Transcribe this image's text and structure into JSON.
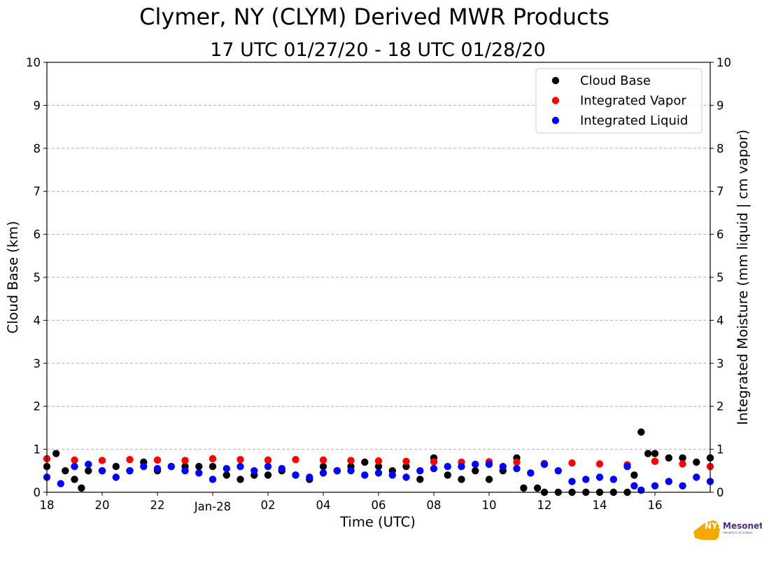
{
  "chart_data": {
    "type": "scatter",
    "title": "Clymer, NY (CLYM) Derived MWR Products",
    "subtitle": "17 UTC 01/27/20 - 18 UTC 01/28/20",
    "xlabel": "Time (UTC)",
    "ylabel": "Cloud Base (km)",
    "ylabel_right": "Integrated Moisture (mm liquid | cm vapor)",
    "xlim": [
      "2020-01-27 18:00",
      "2020-01-28 18:00"
    ],
    "ylim": [
      0,
      10
    ],
    "ylim_right": [
      0,
      10
    ],
    "x_ticks": [
      {
        "t": "2020-01-27 18:00",
        "label": "18"
      },
      {
        "t": "2020-01-27 20:00",
        "label": "20"
      },
      {
        "t": "2020-01-27 22:00",
        "label": "22"
      },
      {
        "t": "2020-01-28 00:00",
        "label": "Jan-28"
      },
      {
        "t": "2020-01-28 02:00",
        "label": "02"
      },
      {
        "t": "2020-01-28 04:00",
        "label": "04"
      },
      {
        "t": "2020-01-28 06:00",
        "label": "06"
      },
      {
        "t": "2020-01-28 08:00",
        "label": "08"
      },
      {
        "t": "2020-01-28 10:00",
        "label": "10"
      },
      {
        "t": "2020-01-28 12:00",
        "label": "12"
      },
      {
        "t": "2020-01-28 14:00",
        "label": "14"
      },
      {
        "t": "2020-01-28 16:00",
        "label": "16"
      }
    ],
    "y_ticks": [
      "0",
      "1",
      "2",
      "3",
      "4",
      "5",
      "6",
      "7",
      "8",
      "9",
      "10"
    ],
    "grid": "horizontal dashed",
    "legend_position": "top-right",
    "series": [
      {
        "name": "Cloud Base",
        "color": "#000000",
        "x": [
          "2020-01-27 18:00",
          "2020-01-27 18:20",
          "2020-01-27 18:40",
          "2020-01-27 19:00",
          "2020-01-27 19:15",
          "2020-01-27 19:30",
          "2020-01-27 20:00",
          "2020-01-27 20:30",
          "2020-01-27 21:00",
          "2020-01-27 21:30",
          "2020-01-27 22:00",
          "2020-01-27 22:30",
          "2020-01-27 23:00",
          "2020-01-27 23:30",
          "2020-01-28 00:00",
          "2020-01-28 00:30",
          "2020-01-28 01:00",
          "2020-01-28 01:30",
          "2020-01-28 02:00",
          "2020-01-28 02:30",
          "2020-01-28 03:00",
          "2020-01-28 03:30",
          "2020-01-28 04:00",
          "2020-01-28 04:30",
          "2020-01-28 05:00",
          "2020-01-28 05:30",
          "2020-01-28 06:00",
          "2020-01-28 06:30",
          "2020-01-28 07:00",
          "2020-01-28 07:30",
          "2020-01-28 08:00",
          "2020-01-28 08:30",
          "2020-01-28 09:00",
          "2020-01-28 09:30",
          "2020-01-28 10:00",
          "2020-01-28 10:30",
          "2020-01-28 11:00",
          "2020-01-28 11:15",
          "2020-01-28 11:45",
          "2020-01-28 12:00",
          "2020-01-28 12:30",
          "2020-01-28 13:00",
          "2020-01-28 13:30",
          "2020-01-28 14:00",
          "2020-01-28 14:30",
          "2020-01-28 15:00",
          "2020-01-28 15:15",
          "2020-01-28 15:30",
          "2020-01-28 15:45",
          "2020-01-28 16:00",
          "2020-01-28 16:30",
          "2020-01-28 17:00",
          "2020-01-28 17:30",
          "2020-01-28 18:00"
        ],
        "y": [
          0.6,
          0.9,
          0.5,
          0.3,
          0.1,
          0.5,
          0.5,
          0.6,
          0.5,
          0.7,
          0.5,
          0.6,
          0.6,
          0.6,
          0.6,
          0.4,
          0.3,
          0.4,
          0.4,
          0.5,
          0.4,
          0.3,
          0.6,
          0.5,
          0.6,
          0.7,
          0.6,
          0.5,
          0.6,
          0.3,
          0.8,
          0.4,
          0.3,
          0.5,
          0.3,
          0.5,
          0.8,
          0.1,
          0.1,
          0.0,
          0.0,
          0.0,
          0.0,
          0.0,
          0.0,
          0.0,
          0.4,
          1.4,
          0.9,
          0.9,
          0.8,
          0.8,
          0.7,
          0.8
        ]
      },
      {
        "name": "Integrated Vapor",
        "color": "#ff0000",
        "x": [
          "2020-01-27 18:00",
          "2020-01-27 19:00",
          "2020-01-27 20:00",
          "2020-01-27 21:00",
          "2020-01-27 22:00",
          "2020-01-27 23:00",
          "2020-01-28 00:00",
          "2020-01-28 01:00",
          "2020-01-28 02:00",
          "2020-01-28 03:00",
          "2020-01-28 04:00",
          "2020-01-28 05:00",
          "2020-01-28 06:00",
          "2020-01-28 07:00",
          "2020-01-28 08:00",
          "2020-01-28 09:00",
          "2020-01-28 10:00",
          "2020-01-28 11:00",
          "2020-01-28 12:00",
          "2020-01-28 13:00",
          "2020-01-28 14:00",
          "2020-01-28 15:00",
          "2020-01-28 16:00",
          "2020-01-28 17:00",
          "2020-01-28 18:00"
        ],
        "y": [
          0.78,
          0.75,
          0.74,
          0.76,
          0.75,
          0.74,
          0.78,
          0.76,
          0.75,
          0.76,
          0.75,
          0.74,
          0.73,
          0.72,
          0.71,
          0.7,
          0.71,
          0.7,
          0.67,
          0.68,
          0.66,
          0.64,
          0.72,
          0.66,
          0.6
        ]
      },
      {
        "name": "Integrated Liquid",
        "color": "#0000ff",
        "x": [
          "2020-01-27 18:00",
          "2020-01-27 18:30",
          "2020-01-27 19:00",
          "2020-01-27 19:30",
          "2020-01-27 20:00",
          "2020-01-27 20:30",
          "2020-01-27 21:00",
          "2020-01-27 21:30",
          "2020-01-27 22:00",
          "2020-01-27 22:30",
          "2020-01-27 23:00",
          "2020-01-27 23:30",
          "2020-01-28 00:00",
          "2020-01-28 00:30",
          "2020-01-28 01:00",
          "2020-01-28 01:30",
          "2020-01-28 02:00",
          "2020-01-28 02:30",
          "2020-01-28 03:00",
          "2020-01-28 03:30",
          "2020-01-28 04:00",
          "2020-01-28 04:30",
          "2020-01-28 05:00",
          "2020-01-28 05:30",
          "2020-01-28 06:00",
          "2020-01-28 06:30",
          "2020-01-28 07:00",
          "2020-01-28 07:30",
          "2020-01-28 08:00",
          "2020-01-28 08:30",
          "2020-01-28 09:00",
          "2020-01-28 09:30",
          "2020-01-28 10:00",
          "2020-01-28 10:30",
          "2020-01-28 11:00",
          "2020-01-28 11:30",
          "2020-01-28 12:00",
          "2020-01-28 12:30",
          "2020-01-28 13:00",
          "2020-01-28 13:30",
          "2020-01-28 14:00",
          "2020-01-28 14:30",
          "2020-01-28 15:00",
          "2020-01-28 15:15",
          "2020-01-28 15:30",
          "2020-01-28 16:00",
          "2020-01-28 16:30",
          "2020-01-28 17:00",
          "2020-01-28 17:30",
          "2020-01-28 18:00"
        ],
        "y": [
          0.35,
          0.2,
          0.6,
          0.65,
          0.5,
          0.35,
          0.5,
          0.6,
          0.55,
          0.6,
          0.5,
          0.45,
          0.3,
          0.55,
          0.6,
          0.5,
          0.6,
          0.55,
          0.4,
          0.35,
          0.45,
          0.5,
          0.5,
          0.4,
          0.45,
          0.4,
          0.35,
          0.5,
          0.55,
          0.6,
          0.6,
          0.65,
          0.65,
          0.6,
          0.55,
          0.45,
          0.65,
          0.5,
          0.25,
          0.3,
          0.35,
          0.3,
          0.6,
          0.15,
          0.05,
          0.15,
          0.25,
          0.15,
          0.35,
          0.25
        ]
      }
    ]
  },
  "logo": {
    "text": "NYS",
    "name": "Mesonet",
    "tagline": "UNIVERSITY AT ALBANY",
    "state_color": "#f5a800",
    "text_color": "#4b2e83"
  }
}
